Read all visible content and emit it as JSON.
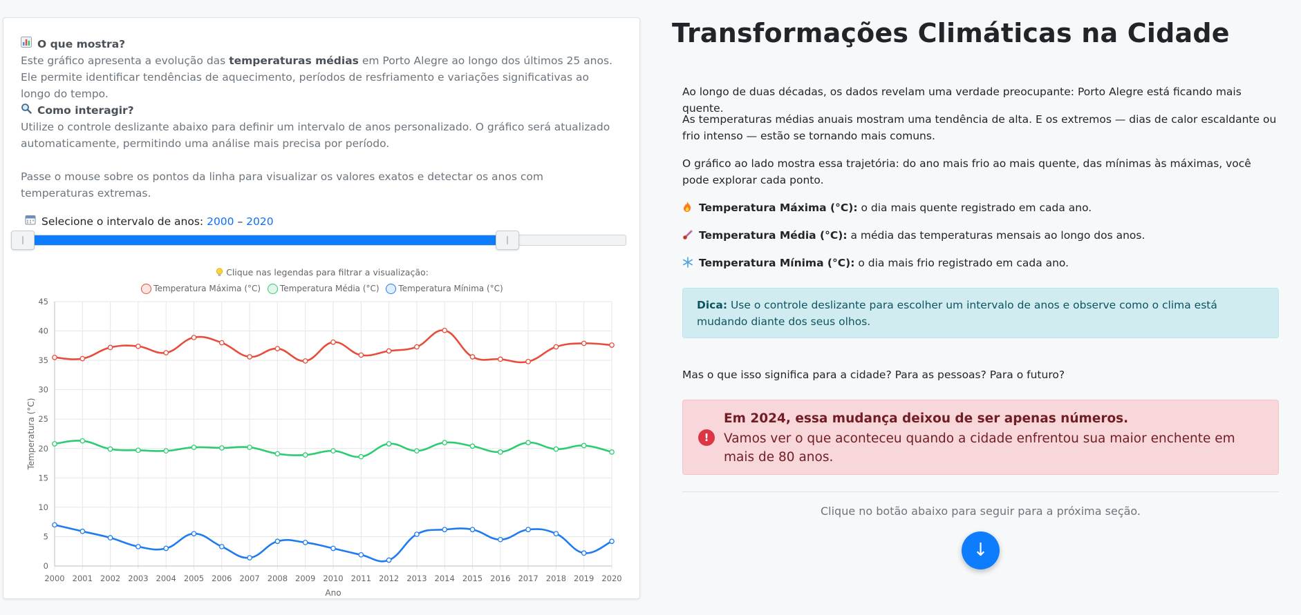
{
  "left_panel": {
    "what_shows": {
      "icon": "bar-chart-icon",
      "heading": "O que mostra?",
      "text_before": "Este gráfico apresenta a evolução das ",
      "text_bold": "temperaturas médias",
      "text_after": " em Porto Alegre ao longo dos últimos 25 anos. Ele permite identificar tendências de aquecimento, períodos de resfriamento e variações significativas ao longo do tempo."
    },
    "how_interact": {
      "icon": "magnifier-icon",
      "heading": "Como interagir?",
      "text1": "Utilize o controle deslizante abaixo para definir um intervalo de anos personalizado. O gráfico será atualizado automaticamente, permitindo uma análise mais precisa por período.",
      "text2": "Passe o mouse sobre os pontos da linha para visualizar os valores exatos e detectar os anos com temperaturas extremas."
    },
    "range": {
      "icon": "calendar-icon",
      "label": "Selecione o intervalo de anos:",
      "start": "2000",
      "separator": "–",
      "end": "2020",
      "fill_fraction": 0.79
    },
    "filter_hint": "Clique nas legendas para filtrar a visualização:",
    "filter_hint_icon": "lightbulb-icon"
  },
  "chart_data": {
    "type": "line",
    "xlabel": "Ano",
    "ylabel": "Temperatura (°C)",
    "ylim": [
      0,
      45
    ],
    "yticks": [
      0,
      5,
      10,
      15,
      20,
      25,
      30,
      35,
      40,
      45
    ],
    "grid": true,
    "legend_position": "top",
    "x": [
      "2000",
      "2001",
      "2002",
      "2003",
      "2004",
      "2005",
      "2006",
      "2007",
      "2008",
      "2009",
      "2010",
      "2011",
      "2012",
      "2013",
      "2014",
      "2015",
      "2016",
      "2017",
      "2018",
      "2019",
      "2020"
    ],
    "series": [
      {
        "name": "Temperatura Máxima (°C)",
        "color": "#e74c3c",
        "values": [
          35.5,
          35.3,
          37.2,
          37.4,
          36.3,
          38.9,
          38.0,
          35.6,
          37.0,
          34.9,
          38.1,
          35.9,
          36.6,
          37.3,
          40.1,
          35.6,
          35.2,
          34.8,
          37.3,
          37.9,
          37.6
        ]
      },
      {
        "name": "Temperatura Média (°C)",
        "color": "#2ecc71",
        "values": [
          20.8,
          21.3,
          19.9,
          19.7,
          19.6,
          20.2,
          20.1,
          20.2,
          19.1,
          18.9,
          19.6,
          18.6,
          20.8,
          19.6,
          21.0,
          20.4,
          19.4,
          21.0,
          19.9,
          20.5,
          19.4
        ]
      },
      {
        "name": "Temperatura Mínima (°C)",
        "color": "#1e7bf0",
        "values": [
          7.0,
          5.9,
          4.8,
          3.3,
          3.0,
          5.5,
          3.3,
          1.4,
          4.2,
          4.0,
          3.0,
          1.9,
          1.0,
          5.4,
          6.2,
          6.2,
          4.5,
          6.2,
          5.5,
          2.2,
          4.2
        ]
      }
    ]
  },
  "right_panel": {
    "title": "Transformações Climáticas na Cidade",
    "p1": "Ao longo de duas décadas, os dados revelam uma verdade preocupante: Porto Alegre está ficando mais quente.",
    "p2": "As temperaturas médias anuais mostram uma tendência de alta. E os extremos — dias de calor escaldante ou frio intenso — estão se tornando mais comuns.",
    "p3": "O gráfico ao lado mostra essa trajetória: do ano mais frio ao mais quente, das mínimas às máximas, você pode explorar cada ponto.",
    "items": [
      {
        "icon": "fire-icon",
        "label": "Temperatura Máxima (°C):",
        "text": " o dia mais quente registrado em cada ano."
      },
      {
        "icon": "thermometer-icon",
        "label": "Temperatura Média (°C):",
        "text": " a média das temperaturas mensais ao longo dos anos."
      },
      {
        "icon": "snowflake-icon",
        "label": "Temperatura Mínima (°C):",
        "text": " o dia mais frio registrado em cada ano."
      }
    ],
    "tip_label": "Dica:",
    "tip_text": " Use o controle deslizante para escolher um intervalo de anos e observe como o clima está mudando diante dos seus olhos.",
    "question": "Mas o que isso significa para a cidade? Para as pessoas? Para o futuro?",
    "alert": {
      "icon": "exclamation-icon",
      "icon_glyph": "!",
      "title": "Em 2024, essa mudança deixou de ser apenas números.",
      "body": "Vamos ver o que aconteceu quando a cidade enfrentou sua maior enchente em mais de 80 anos."
    },
    "next_hint": "Clique no botão abaixo para seguir para a próxima seção.",
    "next_button_glyph": "↓"
  }
}
